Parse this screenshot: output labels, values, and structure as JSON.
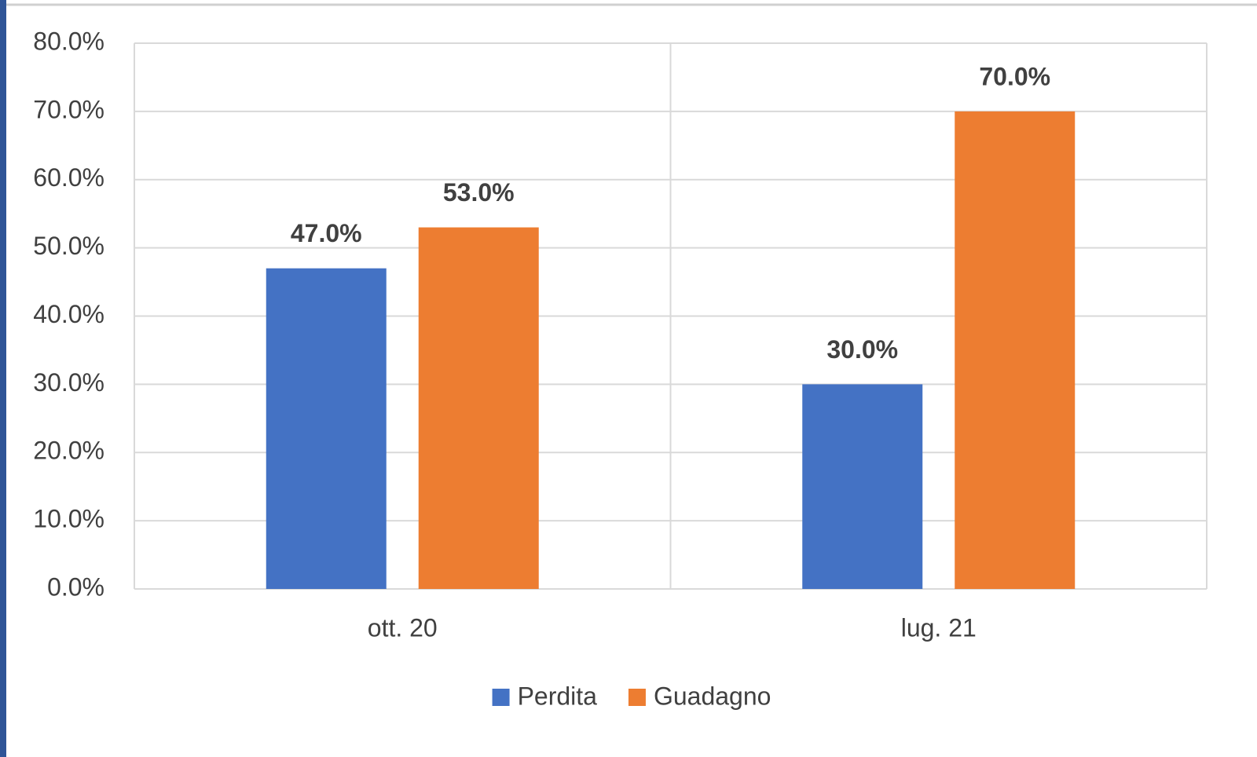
{
  "chart_data": {
    "type": "bar",
    "categories": [
      "ott. 20",
      "lug. 21"
    ],
    "series": [
      {
        "name": "Perdita",
        "color": "#4472c4",
        "values": [
          47,
          30
        ],
        "value_labels": [
          "47.0%",
          "30.0%"
        ]
      },
      {
        "name": "Guadagno",
        "color": "#ed7d31",
        "values": [
          53,
          70
        ],
        "value_labels": [
          "53.0%",
          "70.0%"
        ]
      }
    ],
    "ylim": [
      0,
      80
    ],
    "yticks": [
      {
        "value": 0,
        "label": "0.0%"
      },
      {
        "value": 10,
        "label": "10.0%"
      },
      {
        "value": 20,
        "label": "20.0%"
      },
      {
        "value": 30,
        "label": "30.0%"
      },
      {
        "value": 40,
        "label": "40.0%"
      },
      {
        "value": 50,
        "label": "50.0%"
      },
      {
        "value": 60,
        "label": "60.0%"
      },
      {
        "value": 70,
        "label": "70.0%"
      },
      {
        "value": 80,
        "label": "80.0%"
      }
    ],
    "grid": true,
    "legend": "bottom"
  }
}
